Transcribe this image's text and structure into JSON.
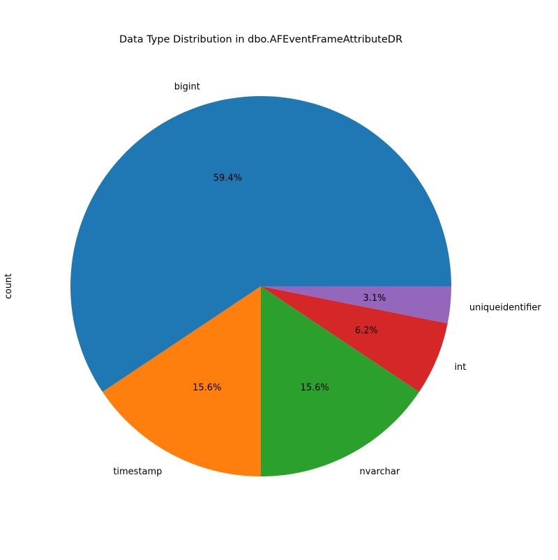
{
  "chart_data": {
    "type": "pie",
    "title": "Data Type Distribution in dbo.AFEventFrameAttributeDR",
    "ylabel": "count",
    "categories": [
      "bigint",
      "timestamp",
      "nvarchar",
      "int",
      "uniqueidentifier"
    ],
    "values": [
      19,
      5,
      5,
      2,
      1
    ],
    "percent_labels": [
      "59.4%",
      "15.6%",
      "15.6%",
      "6.2%",
      "3.1%"
    ],
    "colors": [
      "#1f77b4",
      "#ff7f0e",
      "#2ca02c",
      "#d62728",
      "#9467bd"
    ],
    "start_angle": "0 degrees (3 o'clock), counter-clockwise",
    "legend": "none"
  }
}
